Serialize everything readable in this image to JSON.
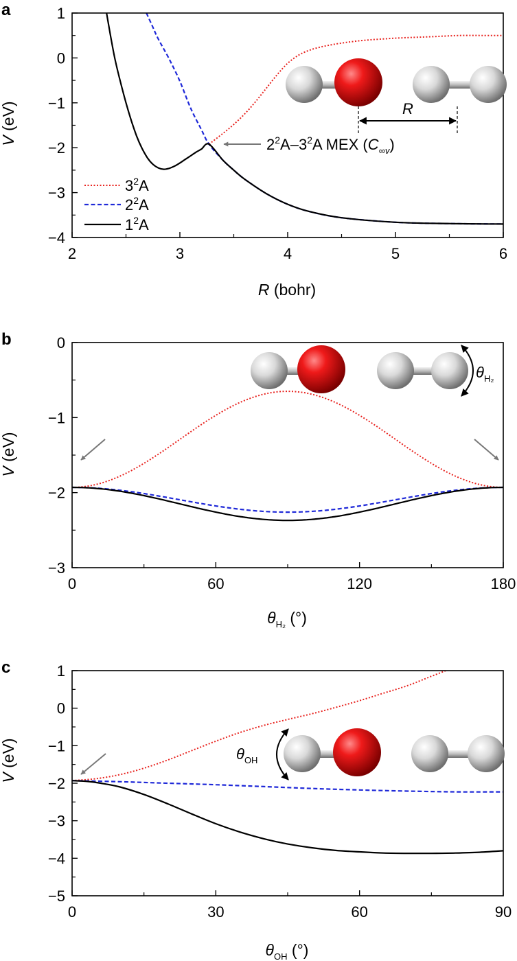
{
  "colors": {
    "state_3": "#e8231f",
    "state_2": "#1e28d8",
    "state_1": "#000000",
    "arrow": "#777777",
    "oxygen": "#e01010",
    "hydrogen": "#d8d8d8"
  },
  "legend": [
    {
      "base": "3",
      "sup": "2",
      "tail": "A",
      "style": "dotted",
      "color": "#e8231f"
    },
    {
      "base": "2",
      "sup": "2",
      "tail": "A",
      "style": "dashed",
      "color": "#1e28d8"
    },
    {
      "base": "1",
      "sup": "2",
      "tail": "A",
      "style": "solid",
      "color": "#000000"
    }
  ],
  "chart_data": [
    {
      "panel": "a",
      "type": "line",
      "xlabel": "R (bohr)",
      "xlabel_parts": {
        "sym": "R",
        "unit": " (bohr)"
      },
      "ylabel": "V (eV)",
      "ylabel_parts": {
        "sym": "V",
        "unit": " (eV)"
      },
      "xlim": [
        2,
        6
      ],
      "ylim": [
        -4,
        1
      ],
      "xticks": [
        2,
        3,
        4,
        5,
        6
      ],
      "yticks": [
        1,
        0,
        -1,
        -2,
        -3,
        -4
      ],
      "ytick_labels": [
        "1",
        "0",
        "−1",
        "−2",
        "−3",
        "−4"
      ],
      "legend_position": "middle-left",
      "annotation": {
        "text": "2²A–3²A MEX (C∞v)",
        "parts": {
          "a": "2",
          "sup1": "2",
          "b": "A–3",
          "sup2": "2",
          "c": "A MEX (",
          "sym": "C",
          "symsub": "∞v",
          "d": ")"
        },
        "points_to": [
          3.27,
          -1.92
        ]
      },
      "inset_label": "R",
      "series": [
        {
          "name": "3²A",
          "style": "dotted",
          "x": [
            3.27,
            3.4,
            3.5,
            3.6,
            3.7,
            3.8,
            3.9,
            4.0,
            4.1,
            4.2,
            4.3,
            4.4,
            4.5,
            4.7,
            5.0,
            5.3,
            5.6,
            5.8,
            6.0
          ],
          "y": [
            -1.92,
            -1.68,
            -1.48,
            -1.25,
            -0.98,
            -0.68,
            -0.38,
            -0.12,
            0.06,
            0.17,
            0.24,
            0.29,
            0.33,
            0.39,
            0.44,
            0.47,
            0.5,
            0.5,
            0.5
          ]
        },
        {
          "name": "2²A",
          "style": "dashed",
          "x": [
            2.69,
            2.75,
            2.8,
            2.9,
            3.0,
            3.1,
            3.2,
            3.27,
            3.4,
            3.5,
            3.6,
            3.8,
            4.0,
            4.2,
            4.5,
            5.0,
            5.5,
            6.0
          ],
          "y": [
            1.0,
            0.68,
            0.42,
            -0.02,
            -0.52,
            -1.12,
            -1.6,
            -1.92,
            -2.28,
            -2.5,
            -2.7,
            -3.02,
            -3.26,
            -3.42,
            -3.56,
            -3.66,
            -3.69,
            -3.7
          ]
        },
        {
          "name": "1²A",
          "style": "solid",
          "x": [
            2.32,
            2.36,
            2.4,
            2.45,
            2.5,
            2.55,
            2.6,
            2.65,
            2.7,
            2.75,
            2.8,
            2.85,
            2.9,
            2.95,
            3.0,
            3.05,
            3.1,
            3.15,
            3.2,
            3.27,
            3.4,
            3.5,
            3.6,
            3.8,
            4.0,
            4.2,
            4.5,
            5.0,
            5.5,
            6.0
          ],
          "y": [
            1.0,
            0.45,
            -0.05,
            -0.55,
            -1.0,
            -1.4,
            -1.75,
            -2.02,
            -2.23,
            -2.37,
            -2.45,
            -2.48,
            -2.46,
            -2.41,
            -2.34,
            -2.26,
            -2.18,
            -2.1,
            -2.03,
            -1.92,
            -2.28,
            -2.5,
            -2.7,
            -3.02,
            -3.26,
            -3.42,
            -3.56,
            -3.66,
            -3.69,
            -3.7
          ]
        }
      ]
    },
    {
      "panel": "b",
      "type": "line",
      "xlabel": "θH₂ (°)",
      "xlabel_parts": {
        "sym": "θ",
        "sub": "H₂",
        "unit": " (°)"
      },
      "ylabel": "V (eV)",
      "ylabel_parts": {
        "sym": "V",
        "unit": " (eV)"
      },
      "xlim": [
        0,
        180
      ],
      "ylim": [
        -3,
        0
      ],
      "xticks": [
        0,
        60,
        120,
        180
      ],
      "yticks": [
        0,
        -1,
        -2,
        -3
      ],
      "ytick_labels": [
        "0",
        "−1",
        "−2",
        "−3"
      ],
      "inset_label": {
        "sym": "θ",
        "sub": "H₂"
      },
      "series": [
        {
          "name": "3²A",
          "style": "dotted",
          "base": -1.93,
          "amp": 1.28
        },
        {
          "name": "2²A",
          "style": "dashed",
          "base": -1.93,
          "amp": -0.33
        },
        {
          "name": "1²A",
          "style": "solid",
          "base": -1.93,
          "amp": -0.44
        }
      ]
    },
    {
      "panel": "c",
      "type": "line",
      "xlabel": "θOH (°)",
      "xlabel_parts": {
        "sym": "θ",
        "sub": "OH",
        "unit": " (°)"
      },
      "ylabel": "V (eV)",
      "ylabel_parts": {
        "sym": "V",
        "unit": " (eV)"
      },
      "xlim": [
        0,
        90
      ],
      "ylim": [
        -5,
        1
      ],
      "xticks": [
        0,
        30,
        60,
        90
      ],
      "yticks": [
        1,
        0,
        -1,
        -2,
        -3,
        -4,
        -5
      ],
      "ytick_labels": [
        "1",
        "0",
        "−1",
        "−2",
        "−3",
        "−4",
        "−5"
      ],
      "inset_label": {
        "sym": "θ",
        "sub": "OH"
      },
      "series": [
        {
          "name": "3²A",
          "style": "dotted",
          "x": [
            0,
            5,
            10,
            15,
            20,
            25,
            30,
            35,
            40,
            45,
            50,
            55,
            60,
            65,
            70,
            75,
            78
          ],
          "y": [
            -1.93,
            -1.88,
            -1.77,
            -1.6,
            -1.38,
            -1.13,
            -0.88,
            -0.65,
            -0.46,
            -0.3,
            -0.15,
            0.02,
            0.2,
            0.4,
            0.6,
            0.85,
            1.0
          ]
        },
        {
          "name": "2²A",
          "style": "dashed",
          "x": [
            0,
            10,
            20,
            30,
            40,
            50,
            60,
            70,
            80,
            90
          ],
          "y": [
            -1.93,
            -1.96,
            -2.0,
            -2.04,
            -2.09,
            -2.14,
            -2.18,
            -2.21,
            -2.23,
            -2.23
          ]
        },
        {
          "name": "1²A",
          "style": "solid",
          "x": [
            0,
            3,
            6,
            10,
            15,
            20,
            25,
            30,
            35,
            40,
            45,
            50,
            55,
            60,
            65,
            70,
            75,
            80,
            85,
            90
          ],
          "y": [
            -1.93,
            -1.95,
            -2.0,
            -2.1,
            -2.3,
            -2.55,
            -2.82,
            -3.08,
            -3.3,
            -3.48,
            -3.62,
            -3.72,
            -3.79,
            -3.83,
            -3.86,
            -3.87,
            -3.87,
            -3.86,
            -3.84,
            -3.8
          ]
        }
      ]
    }
  ]
}
